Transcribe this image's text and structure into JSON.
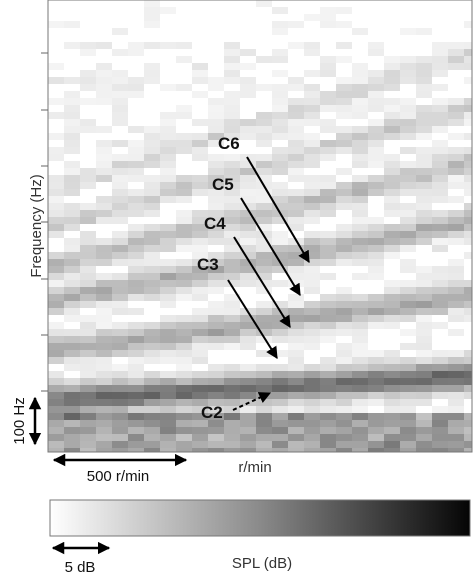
{
  "chart_data": {
    "type": "heatmap",
    "title": "",
    "xlabel": "r/min",
    "ylabel": "Frequency (Hz)",
    "colorbar_label": "SPL (dB)",
    "colorbar_colors": [
      "#ffffff",
      "#000000"
    ],
    "scale_bars": {
      "x": "500 r/min",
      "y": "100 Hz",
      "colorbar": "5 dB"
    },
    "annotations": [
      {
        "label": "C6",
        "style": "solid-arrow"
      },
      {
        "label": "C5",
        "style": "solid-arrow"
      },
      {
        "label": "C4",
        "style": "solid-arrow"
      },
      {
        "label": "C3",
        "style": "solid-arrow"
      },
      {
        "label": "C2",
        "style": "dashed-arrow"
      }
    ],
    "grid": false,
    "legend": "colorbar-bottom"
  }
}
